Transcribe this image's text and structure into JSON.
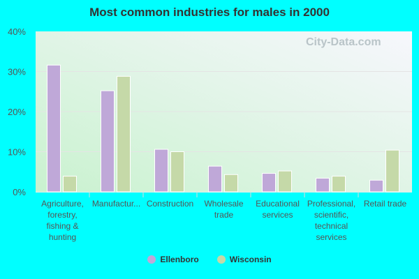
{
  "chart_data": {
    "type": "bar",
    "title": "Most common industries for males in 2000",
    "categories": [
      [
        "Agriculture,",
        "forestry,",
        "fishing &",
        "hunting"
      ],
      [
        "Manufactur..."
      ],
      [
        "Construction"
      ],
      [
        "Wholesale",
        "trade"
      ],
      [
        "Educational",
        "services"
      ],
      [
        "Professional,",
        "scientific,",
        "technical",
        "services"
      ],
      [
        "Retail trade"
      ]
    ],
    "series": [
      {
        "name": "Ellenboro",
        "color": "#bfa8d8",
        "values": [
          31.6,
          25.2,
          10.6,
          6.4,
          4.6,
          3.4,
          2.9
        ]
      },
      {
        "name": "Wisconsin",
        "color": "#c5d9a8",
        "values": [
          3.9,
          28.8,
          10.0,
          4.3,
          5.2,
          3.9,
          10.4
        ]
      }
    ],
    "ylim": [
      0,
      40
    ],
    "yticks": [
      "0%",
      "10%",
      "20%",
      "30%",
      "40%"
    ],
    "grid": true,
    "legend": "bottom",
    "watermark": "City-Data.com"
  }
}
